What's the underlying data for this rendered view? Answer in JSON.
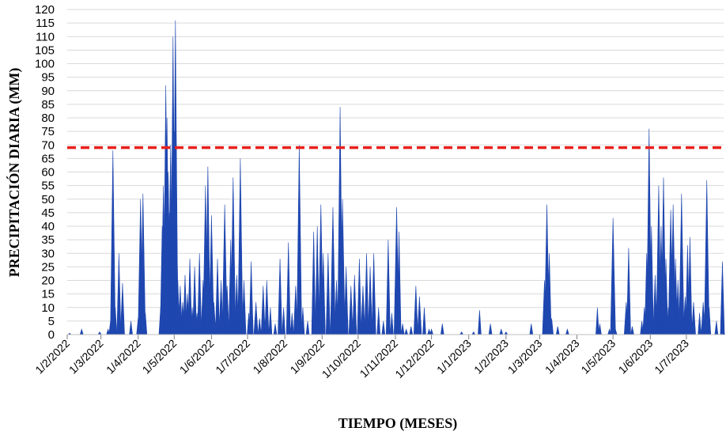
{
  "chart_data": {
    "type": "area",
    "title": "",
    "xlabel": "TIEMPO (MESES)",
    "ylabel": "PRECIPITACIÓN DIARIA (MM)",
    "ylim": [
      0,
      120
    ],
    "yticks": [
      0,
      5,
      10,
      15,
      20,
      25,
      30,
      35,
      40,
      45,
      50,
      55,
      60,
      65,
      70,
      75,
      80,
      85,
      90,
      95,
      100,
      105,
      110,
      115,
      120
    ],
    "x_range": [
      "2022-02-01",
      "2023-08-01"
    ],
    "x_tick_labels": [
      "1/2/2022",
      "1/3/2022",
      "1/4/2022",
      "1/5/2022",
      "1/6/2022",
      "1/7/2022",
      "1/8/2022",
      "1/9/2022",
      "1/10/2022",
      "1/11/2022",
      "1/12/2022",
      "1/1/2023",
      "1/2/2023",
      "1/3/2023",
      "1/4/2023",
      "1/5/2023",
      "1/6/2023",
      "1/7/2023"
    ],
    "grid": "horizontal",
    "legend": "none",
    "series_color": "#1f47b0",
    "threshold": {
      "value": 69,
      "color": "#e8201c",
      "style": "dashed"
    },
    "series": [
      {
        "values": [
          [
            "2022-02-03",
            0.5
          ],
          [
            "2022-02-13",
            2
          ],
          [
            "2022-02-28",
            1
          ],
          [
            "2022-03-07",
            2
          ],
          [
            "2022-03-09",
            5
          ],
          [
            "2022-03-11",
            68
          ],
          [
            "2022-03-13",
            10
          ],
          [
            "2022-03-16",
            30
          ],
          [
            "2022-03-19",
            19
          ],
          [
            "2022-03-26",
            5
          ],
          [
            "2022-04-01",
            6
          ],
          [
            "2022-04-03",
            50
          ],
          [
            "2022-04-05",
            52
          ],
          [
            "2022-04-07",
            8
          ],
          [
            "2022-04-20",
            12
          ],
          [
            "2022-04-21",
            40
          ],
          [
            "2022-04-22",
            55
          ],
          [
            "2022-04-23",
            30
          ],
          [
            "2022-04-24",
            92
          ],
          [
            "2022-04-25",
            80
          ],
          [
            "2022-04-26",
            60
          ],
          [
            "2022-04-27",
            45
          ],
          [
            "2022-04-28",
            70
          ],
          [
            "2022-04-29",
            25
          ],
          [
            "2022-04-30",
            110
          ],
          [
            "2022-05-01",
            75
          ],
          [
            "2022-05-02",
            116
          ],
          [
            "2022-05-03",
            40
          ],
          [
            "2022-05-04",
            20
          ],
          [
            "2022-05-06",
            18
          ],
          [
            "2022-05-08",
            12
          ],
          [
            "2022-05-10",
            22
          ],
          [
            "2022-05-12",
            15
          ],
          [
            "2022-05-14",
            28
          ],
          [
            "2022-05-16",
            10
          ],
          [
            "2022-05-18",
            25
          ],
          [
            "2022-05-20",
            8
          ],
          [
            "2022-05-22",
            30
          ],
          [
            "2022-05-25",
            20
          ],
          [
            "2022-05-27",
            55
          ],
          [
            "2022-05-29",
            62
          ],
          [
            "2022-06-01",
            44
          ],
          [
            "2022-06-03",
            12
          ],
          [
            "2022-06-06",
            28
          ],
          [
            "2022-06-09",
            20
          ],
          [
            "2022-06-12",
            48
          ],
          [
            "2022-06-14",
            18
          ],
          [
            "2022-06-17",
            35
          ],
          [
            "2022-06-19",
            58
          ],
          [
            "2022-06-22",
            22
          ],
          [
            "2022-06-25",
            65
          ],
          [
            "2022-06-28",
            20
          ],
          [
            "2022-07-02",
            8
          ],
          [
            "2022-07-04",
            27
          ],
          [
            "2022-07-08",
            12
          ],
          [
            "2022-07-11",
            6
          ],
          [
            "2022-07-14",
            18
          ],
          [
            "2022-07-17",
            20
          ],
          [
            "2022-07-20",
            10
          ],
          [
            "2022-07-24",
            4
          ],
          [
            "2022-07-28",
            28
          ],
          [
            "2022-07-31",
            10
          ],
          [
            "2022-08-04",
            34
          ],
          [
            "2022-08-07",
            8
          ],
          [
            "2022-08-10",
            18
          ],
          [
            "2022-08-13",
            70
          ],
          [
            "2022-08-16",
            10
          ],
          [
            "2022-08-20",
            5
          ],
          [
            "2022-08-25",
            38
          ],
          [
            "2022-08-28",
            40
          ],
          [
            "2022-08-31",
            48
          ],
          [
            "2022-09-02",
            30
          ],
          [
            "2022-09-06",
            30
          ],
          [
            "2022-09-10",
            47
          ],
          [
            "2022-09-13",
            20
          ],
          [
            "2022-09-16",
            84
          ],
          [
            "2022-09-18",
            50
          ],
          [
            "2022-09-21",
            25
          ],
          [
            "2022-09-25",
            18
          ],
          [
            "2022-09-28",
            22
          ],
          [
            "2022-10-02",
            28
          ],
          [
            "2022-10-05",
            18
          ],
          [
            "2022-10-08",
            30
          ],
          [
            "2022-10-11",
            25
          ],
          [
            "2022-10-14",
            30
          ],
          [
            "2022-10-18",
            10
          ],
          [
            "2022-10-22",
            5
          ],
          [
            "2022-10-26",
            35
          ],
          [
            "2022-10-29",
            8
          ],
          [
            "2022-11-02",
            47
          ],
          [
            "2022-11-04",
            38
          ],
          [
            "2022-11-07",
            4
          ],
          [
            "2022-11-10",
            2
          ],
          [
            "2022-11-14",
            3
          ],
          [
            "2022-11-18",
            18
          ],
          [
            "2022-11-21",
            14
          ],
          [
            "2022-11-25",
            10
          ],
          [
            "2022-11-29",
            2
          ],
          [
            "2022-12-01",
            2
          ],
          [
            "2022-12-10",
            4
          ],
          [
            "2022-12-26",
            1
          ],
          [
            "2023-01-05",
            1
          ],
          [
            "2023-01-10",
            9
          ],
          [
            "2023-01-19",
            4
          ],
          [
            "2023-01-28",
            2
          ],
          [
            "2023-02-01",
            1
          ],
          [
            "2023-02-22",
            4
          ],
          [
            "2023-03-05",
            20
          ],
          [
            "2023-03-07",
            48
          ],
          [
            "2023-03-09",
            30
          ],
          [
            "2023-03-11",
            6
          ],
          [
            "2023-03-16",
            3
          ],
          [
            "2023-03-24",
            2
          ],
          [
            "2023-04-18",
            10
          ],
          [
            "2023-04-20",
            4
          ],
          [
            "2023-04-28",
            2
          ],
          [
            "2023-05-01",
            43
          ],
          [
            "2023-05-03",
            2
          ],
          [
            "2023-05-12",
            12
          ],
          [
            "2023-05-14",
            32
          ],
          [
            "2023-05-17",
            3
          ],
          [
            "2023-05-25",
            5
          ],
          [
            "2023-05-27",
            10
          ],
          [
            "2023-05-29",
            30
          ],
          [
            "2023-05-31",
            76
          ],
          [
            "2023-06-02",
            40
          ],
          [
            "2023-06-05",
            22
          ],
          [
            "2023-06-08",
            55
          ],
          [
            "2023-06-10",
            40
          ],
          [
            "2023-06-12",
            58
          ],
          [
            "2023-06-14",
            28
          ],
          [
            "2023-06-16",
            10
          ],
          [
            "2023-06-18",
            46
          ],
          [
            "2023-06-20",
            48
          ],
          [
            "2023-06-22",
            28
          ],
          [
            "2023-06-24",
            20
          ],
          [
            "2023-06-27",
            52
          ],
          [
            "2023-06-30",
            14
          ],
          [
            "2023-07-02",
            33
          ],
          [
            "2023-07-04",
            36
          ],
          [
            "2023-07-07",
            12
          ],
          [
            "2023-07-12",
            8
          ],
          [
            "2023-07-15",
            12
          ],
          [
            "2023-07-18",
            57
          ],
          [
            "2023-07-20",
            10
          ],
          [
            "2023-07-26",
            5
          ],
          [
            "2023-07-31",
            27
          ]
        ]
      }
    ]
  }
}
